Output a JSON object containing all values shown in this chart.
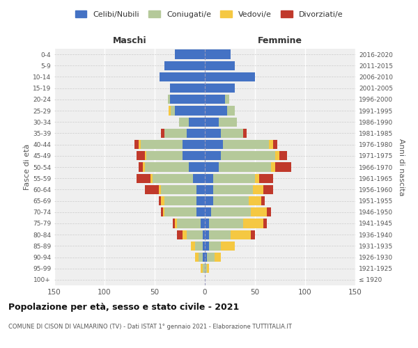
{
  "age_groups": [
    "100+",
    "95-99",
    "90-94",
    "85-89",
    "80-84",
    "75-79",
    "70-74",
    "65-69",
    "60-64",
    "55-59",
    "50-54",
    "45-49",
    "40-44",
    "35-39",
    "30-34",
    "25-29",
    "20-24",
    "15-19",
    "10-14",
    "5-9",
    "0-4"
  ],
  "birth_years": [
    "≤ 1920",
    "1921-1925",
    "1926-1930",
    "1931-1935",
    "1936-1940",
    "1941-1945",
    "1946-1950",
    "1951-1955",
    "1956-1960",
    "1961-1965",
    "1966-1970",
    "1971-1975",
    "1976-1980",
    "1981-1985",
    "1986-1990",
    "1991-1995",
    "1996-2000",
    "2001-2005",
    "2006-2010",
    "2011-2015",
    "2016-2020"
  ],
  "maschi": {
    "celibi": [
      0,
      0,
      2,
      2,
      2,
      4,
      8,
      8,
      8,
      12,
      16,
      22,
      22,
      18,
      16,
      30,
      35,
      35,
      45,
      40,
      30
    ],
    "coniugati": [
      0,
      2,
      4,
      8,
      16,
      24,
      32,
      32,
      36,
      40,
      44,
      36,
      42,
      22,
      10,
      4,
      2,
      0,
      0,
      0,
      0
    ],
    "vedovi": [
      0,
      2,
      4,
      4,
      4,
      2,
      2,
      4,
      2,
      2,
      2,
      2,
      2,
      0,
      0,
      2,
      0,
      0,
      0,
      0,
      0
    ],
    "divorziati": [
      0,
      0,
      0,
      0,
      6,
      2,
      2,
      2,
      14,
      14,
      4,
      8,
      4,
      4,
      0,
      0,
      0,
      0,
      0,
      0,
      0
    ]
  },
  "femmine": {
    "nubili": [
      0,
      0,
      2,
      4,
      4,
      4,
      6,
      8,
      8,
      8,
      14,
      16,
      18,
      16,
      14,
      22,
      20,
      30,
      50,
      30,
      26
    ],
    "coniugate": [
      0,
      2,
      8,
      12,
      22,
      34,
      40,
      36,
      40,
      42,
      52,
      54,
      46,
      22,
      18,
      8,
      4,
      0,
      0,
      0,
      0
    ],
    "vedove": [
      0,
      2,
      6,
      14,
      20,
      20,
      16,
      12,
      10,
      4,
      4,
      4,
      4,
      0,
      0,
      0,
      0,
      0,
      0,
      0,
      0
    ],
    "divorziate": [
      0,
      0,
      0,
      0,
      4,
      4,
      4,
      4,
      10,
      14,
      16,
      8,
      4,
      4,
      0,
      0,
      0,
      0,
      0,
      0,
      0
    ]
  },
  "colors": {
    "celibi_nubili": "#4472c4",
    "coniugati": "#b5c99a",
    "vedovi": "#f5c842",
    "divorziati": "#c0392b"
  },
  "xlim": 150,
  "title": "Popolazione per età, sesso e stato civile - 2021",
  "subtitle": "COMUNE DI CISON DI VALMARINO (TV) - Dati ISTAT 1° gennaio 2021 - Elaborazione TUTTITALIA.IT",
  "ylabel_left": "Fasce di età",
  "ylabel_right": "Anni di nascita",
  "xlabel_left": "Maschi",
  "xlabel_right": "Femmine",
  "bg_color": "#ffffff",
  "plot_bg_color": "#efefef",
  "legend_labels": [
    "Celibi/Nubili",
    "Coniugati/e",
    "Vedovi/e",
    "Divorziati/e"
  ]
}
